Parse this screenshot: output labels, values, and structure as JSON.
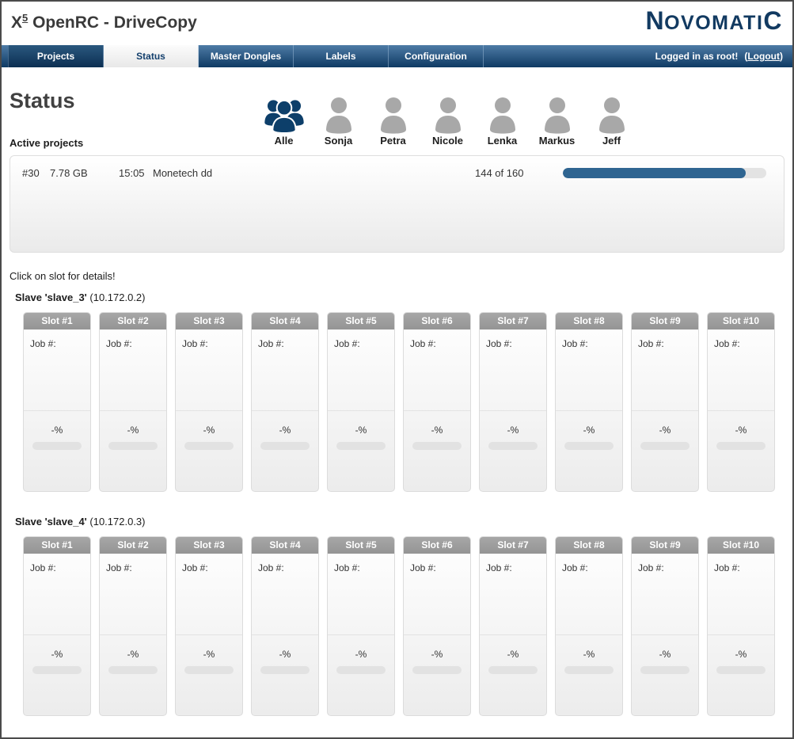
{
  "app": {
    "title": {
      "x": "X",
      "sup": "5",
      "rest": " OpenRC - DriveCopy"
    },
    "logo": {
      "first": "N",
      "middle": "OVOMATI",
      "last": "C"
    }
  },
  "nav": {
    "tabs": [
      {
        "label": "Projects"
      },
      {
        "label": "Status"
      },
      {
        "label": "Master Dongles"
      },
      {
        "label": "Labels"
      },
      {
        "label": "Configuration"
      }
    ],
    "active_tab": "Status",
    "logged_in_text": "Logged in as root!",
    "logout": {
      "prefix": "(",
      "label": "Logout",
      "suffix": ")"
    }
  },
  "page": {
    "heading": "Status",
    "slot_hint": "Click on slot for details!"
  },
  "users": {
    "items": [
      {
        "name": "Alle",
        "icon": "group-icon",
        "color": "#0d3f6a"
      },
      {
        "name": "Sonja",
        "icon": "person-icon",
        "color": "#a8a8a8"
      },
      {
        "name": "Petra",
        "icon": "person-icon",
        "color": "#a8a8a8"
      },
      {
        "name": "Nicole",
        "icon": "person-icon",
        "color": "#a8a8a8"
      },
      {
        "name": "Lenka",
        "icon": "person-icon",
        "color": "#a8a8a8"
      },
      {
        "name": "Markus",
        "icon": "person-icon",
        "color": "#a8a8a8"
      },
      {
        "name": "Jeff",
        "icon": "person-icon",
        "color": "#a8a8a8"
      }
    ]
  },
  "active_projects": {
    "label": "Active projects",
    "rows": [
      {
        "id": "#30",
        "size": "7.78 GB",
        "time": "15:05",
        "name": "Monetech dd",
        "progress_text": "144 of 160",
        "progress_done": 144,
        "progress_total": 160
      }
    ]
  },
  "slots_config": {
    "job_label": "Job #:",
    "percent": "-%"
  },
  "slaves": [
    {
      "name": "Slave 'slave_3'",
      "ip": "(10.172.0.2)",
      "slots": [
        {
          "label": "Slot #1"
        },
        {
          "label": "Slot #2"
        },
        {
          "label": "Slot #3"
        },
        {
          "label": "Slot #4"
        },
        {
          "label": "Slot #5"
        },
        {
          "label": "Slot #6"
        },
        {
          "label": "Slot #7"
        },
        {
          "label": "Slot #8"
        },
        {
          "label": "Slot #9"
        },
        {
          "label": "Slot #10"
        }
      ]
    },
    {
      "name": "Slave 'slave_4'",
      "ip": "(10.172.0.3)",
      "slots": [
        {
          "label": "Slot #1"
        },
        {
          "label": "Slot #2"
        },
        {
          "label": "Slot #3"
        },
        {
          "label": "Slot #4"
        },
        {
          "label": "Slot #5"
        },
        {
          "label": "Slot #6"
        },
        {
          "label": "Slot #7"
        },
        {
          "label": "Slot #8"
        },
        {
          "label": "Slot #9"
        },
        {
          "label": "Slot #10"
        }
      ]
    }
  ],
  "colors": {
    "nav_gradient_top": "#4e7ba6",
    "nav_gradient_bottom": "#0e3a63",
    "progress_fill": "#2f6591",
    "accent_navy": "#0d3f6a",
    "person_gray": "#a8a8a8",
    "slot_header_gray": "#9a9a9a"
  }
}
